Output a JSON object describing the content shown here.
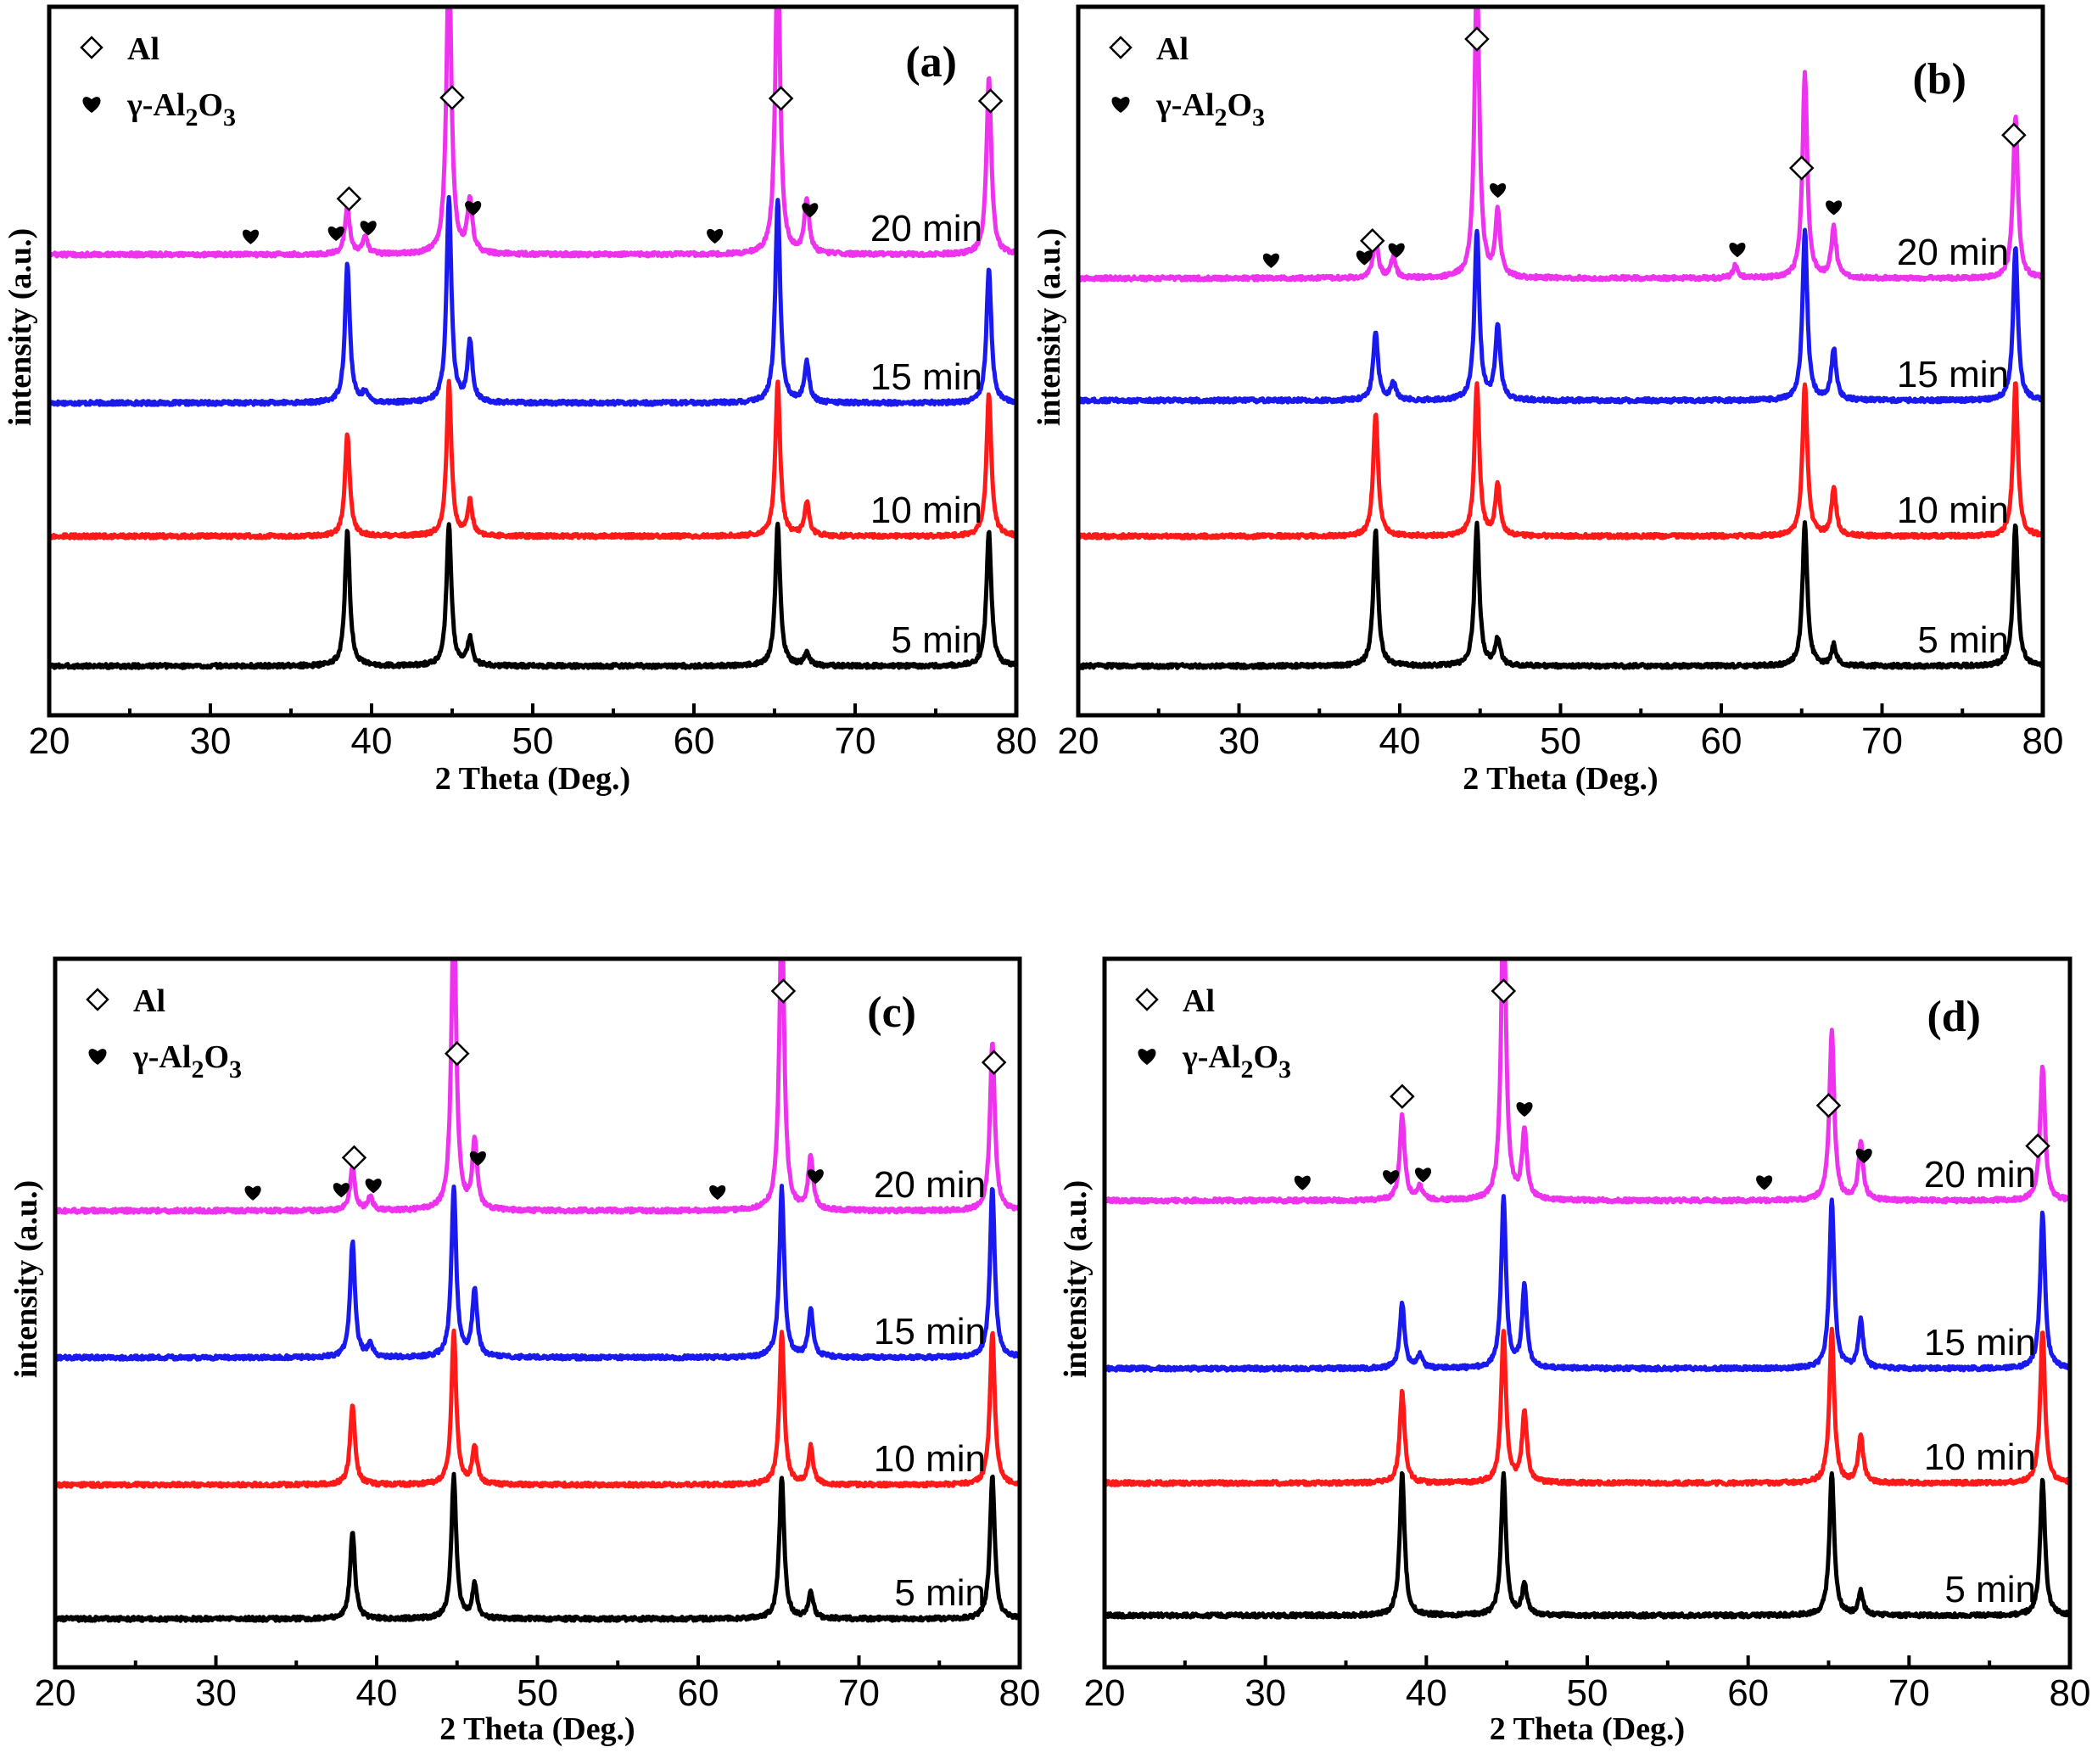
{
  "colors": {
    "5 min": "#000000",
    "10 min": "#ff1a1a",
    "15 min": "#1a1aee",
    "20 min": "#ee33ee"
  },
  "chart_data": [
    {
      "type": "line",
      "panel_label": "(a)",
      "xlabel": "2 Theta (Deg.)",
      "ylabel": "intensity (a.u.)",
      "xlim": [
        20,
        80
      ],
      "xticks": [
        "20",
        "30",
        "40",
        "50",
        "60",
        "70",
        "80"
      ],
      "legend": [
        {
          "symbol": "diamond",
          "label": "Al"
        },
        {
          "symbol": "heart",
          "label": "γ-Al",
          "sub1": "2",
          "mid": "O",
          "sub2": "3"
        }
      ],
      "series": [
        {
          "name": "5 min",
          "peaks": [
            [
              38.5,
              4.0
            ],
            [
              44.8,
              4.2
            ],
            [
              46.1,
              0.8
            ],
            [
              65.2,
              4.2
            ],
            [
              67.0,
              0.4
            ],
            [
              78.3,
              4.0
            ]
          ]
        },
        {
          "name": "10 min",
          "peaks": [
            [
              38.5,
              3.0
            ],
            [
              44.8,
              4.5
            ],
            [
              46.1,
              1.0
            ],
            [
              65.2,
              4.5
            ],
            [
              67.0,
              1.0
            ],
            [
              78.3,
              4.2
            ]
          ]
        },
        {
          "name": "15 min",
          "peaks": [
            [
              38.5,
              4.1
            ],
            [
              39.6,
              0.3
            ],
            [
              44.8,
              6.0
            ],
            [
              46.1,
              1.8
            ],
            [
              65.2,
              6.0
            ],
            [
              67.0,
              1.2
            ],
            [
              78.3,
              4.0
            ]
          ]
        },
        {
          "name": "20 min",
          "peaks": [
            [
              38.5,
              1.4
            ],
            [
              39.6,
              0.5
            ],
            [
              44.8,
              9.0
            ],
            [
              46.1,
              1.6
            ],
            [
              65.2,
              9.0
            ],
            [
              67.0,
              1.6
            ],
            [
              78.3,
              5.2
            ]
          ]
        }
      ],
      "markers": {
        "al": [
          38.6,
          45.0,
          65.4,
          78.4
        ],
        "gamma": [
          32.5,
          37.8,
          39.8,
          46.3,
          61.3,
          67.2
        ]
      }
    },
    {
      "type": "line",
      "panel_label": "(b)",
      "xlabel": "2 Theta (Deg.)",
      "ylabel": "intensity (a.u.)",
      "xlim": [
        20,
        80
      ],
      "xticks": [
        "20",
        "30",
        "40",
        "50",
        "60",
        "70",
        "80"
      ],
      "legend": [
        {
          "symbol": "diamond",
          "label": "Al"
        },
        {
          "symbol": "heart",
          "label": "γ-Al",
          "sub1": "2",
          "mid": "O",
          "sub2": "3"
        }
      ],
      "series": [
        {
          "name": "5 min",
          "peaks": [
            [
              38.5,
              4.0
            ],
            [
              44.8,
              4.2
            ],
            [
              46.1,
              0.8
            ],
            [
              65.2,
              4.2
            ],
            [
              67.0,
              0.6
            ],
            [
              78.3,
              4.2
            ]
          ]
        },
        {
          "name": "10 min",
          "peaks": [
            [
              38.5,
              3.6
            ],
            [
              44.8,
              4.5
            ],
            [
              46.1,
              1.5
            ],
            [
              65.2,
              4.5
            ],
            [
              67.0,
              1.4
            ],
            [
              78.3,
              4.5
            ]
          ]
        },
        {
          "name": "15 min",
          "peaks": [
            [
              38.5,
              2.0
            ],
            [
              39.6,
              0.5
            ],
            [
              44.8,
              5.0
            ],
            [
              46.1,
              2.2
            ],
            [
              65.2,
              5.0
            ],
            [
              67.0,
              1.5
            ],
            [
              78.3,
              4.5
            ]
          ]
        },
        {
          "name": "20 min",
          "peaks": [
            [
              38.5,
              1.2
            ],
            [
              39.6,
              0.6
            ],
            [
              44.8,
              9.0
            ],
            [
              46.1,
              1.9
            ],
            [
              60.9,
              0.4
            ],
            [
              65.2,
              6.0
            ],
            [
              67.0,
              1.5
            ],
            [
              78.3,
              4.8
            ]
          ]
        }
      ],
      "markers": {
        "al": [
          38.3,
          44.8,
          65.0,
          78.2
        ],
        "gamma": [
          32.0,
          37.8,
          39.8,
          46.1,
          61.0,
          67.0
        ]
      }
    },
    {
      "type": "line",
      "panel_label": "(c)",
      "xlabel": "2 Theta (Deg.)",
      "ylabel": "intensity (a.u.)",
      "xlim": [
        20,
        80
      ],
      "xticks": [
        "20",
        "30",
        "40",
        "50",
        "60",
        "70",
        "80"
      ],
      "legend": [
        {
          "symbol": "diamond",
          "label": "Al"
        },
        {
          "symbol": "heart",
          "label": "γ-Al",
          "sub1": "2",
          "mid": "O",
          "sub2": "3"
        }
      ],
      "series": [
        {
          "name": "5 min",
          "peaks": [
            [
              38.5,
              2.6
            ],
            [
              44.8,
              4.2
            ],
            [
              46.1,
              1.0
            ],
            [
              65.2,
              4.2
            ],
            [
              67.0,
              0.8
            ],
            [
              78.3,
              4.2
            ]
          ]
        },
        {
          "name": "10 min",
          "peaks": [
            [
              38.5,
              2.4
            ],
            [
              44.8,
              4.5
            ],
            [
              46.1,
              1.1
            ],
            [
              65.2,
              4.5
            ],
            [
              67.0,
              1.1
            ],
            [
              78.3,
              4.5
            ]
          ]
        },
        {
          "name": "15 min",
          "peaks": [
            [
              38.5,
              3.4
            ],
            [
              39.6,
              0.4
            ],
            [
              44.8,
              5.0
            ],
            [
              46.1,
              2.0
            ],
            [
              65.2,
              5.0
            ],
            [
              67.0,
              1.4
            ],
            [
              78.3,
              5.0
            ]
          ]
        },
        {
          "name": "20 min",
          "peaks": [
            [
              38.5,
              1.3
            ],
            [
              39.6,
              0.4
            ],
            [
              44.8,
              9.0
            ],
            [
              46.1,
              2.0
            ],
            [
              65.2,
              9.0
            ],
            [
              67.0,
              1.6
            ],
            [
              78.3,
              5.0
            ]
          ]
        }
      ],
      "markers": {
        "al": [
          38.6,
          45.0,
          65.3,
          78.4
        ],
        "gamma": [
          32.3,
          37.8,
          39.8,
          46.3,
          61.2,
          67.3
        ]
      }
    },
    {
      "type": "line",
      "panel_label": "(d)",
      "xlabel": "2 Theta (Deg.)",
      "ylabel": "intensity (a.u.)",
      "xlim": [
        20,
        80
      ],
      "xticks": [
        "20",
        "30",
        "40",
        "50",
        "60",
        "70",
        "80"
      ],
      "legend": [
        {
          "symbol": "diamond",
          "label": "Al"
        },
        {
          "symbol": "heart",
          "label": "γ-Al",
          "sub1": "2",
          "mid": "O",
          "sub2": "3"
        }
      ],
      "series": [
        {
          "name": "5 min",
          "peaks": [
            [
              38.5,
              4.2
            ],
            [
              44.8,
              4.2
            ],
            [
              46.1,
              0.9
            ],
            [
              65.2,
              4.2
            ],
            [
              67.0,
              0.7
            ],
            [
              78.3,
              4.0
            ]
          ]
        },
        {
          "name": "10 min",
          "peaks": [
            [
              38.5,
              2.7
            ],
            [
              44.8,
              4.5
            ],
            [
              46.1,
              2.1
            ],
            [
              65.2,
              4.5
            ],
            [
              67.0,
              1.4
            ],
            [
              78.3,
              4.5
            ]
          ]
        },
        {
          "name": "15 min",
          "peaks": [
            [
              38.5,
              1.9
            ],
            [
              39.6,
              0.4
            ],
            [
              44.8,
              5.0
            ],
            [
              46.1,
              2.4
            ],
            [
              65.2,
              5.0
            ],
            [
              67.0,
              1.4
            ],
            [
              78.3,
              4.6
            ]
          ]
        },
        {
          "name": "20 min",
          "peaks": [
            [
              38.5,
              2.5
            ],
            [
              39.6,
              0.4
            ],
            [
              44.8,
              9.0
            ],
            [
              46.1,
              2.0
            ],
            [
              65.2,
              5.0
            ],
            [
              67.0,
              1.7
            ],
            [
              78.3,
              4.0
            ]
          ]
        }
      ],
      "markers": {
        "al": [
          38.5,
          44.8,
          65.0,
          78.0
        ],
        "gamma": [
          32.3,
          37.8,
          39.8,
          46.1,
          61.0,
          67.2
        ]
      }
    }
  ]
}
